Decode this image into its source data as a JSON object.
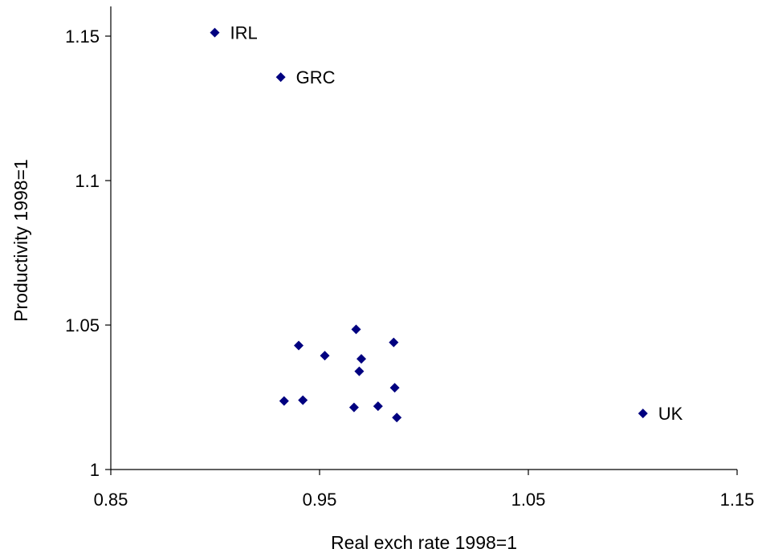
{
  "chart_data": {
    "type": "scatter",
    "title": "",
    "xlabel": "Real exch rate 1998=1",
    "ylabel": "Productivity 1998=1",
    "xlim": [
      0.85,
      1.15
    ],
    "ylim": [
      1,
      1.16
    ],
    "x_ticks": [
      {
        "value": 0.85,
        "label": "0.85"
      },
      {
        "value": 0.95,
        "label": "0.95"
      },
      {
        "value": 1.05,
        "label": "1.05"
      },
      {
        "value": 1.15,
        "label": "1.15"
      }
    ],
    "y_ticks": [
      {
        "value": 1,
        "label": "1"
      },
      {
        "value": 1.05,
        "label": "1.05"
      },
      {
        "value": 1.1,
        "label": "1.1"
      },
      {
        "value": 1.15,
        "label": "1.15"
      }
    ],
    "marker": "diamond",
    "marker_color": "#000080",
    "grid": false,
    "legend": "none",
    "points": [
      {
        "x": 0.8998,
        "y": 1.1512,
        "label": "IRL"
      },
      {
        "x": 0.9314,
        "y": 1.1358,
        "label": "GRC"
      },
      {
        "x": 1.1049,
        "y": 1.0194,
        "label": "UK"
      },
      {
        "x": 0.94,
        "y": 1.0429,
        "label": ""
      },
      {
        "x": 0.9525,
        "y": 1.0394,
        "label": ""
      },
      {
        "x": 0.9675,
        "y": 1.0485,
        "label": ""
      },
      {
        "x": 0.9855,
        "y": 1.044,
        "label": ""
      },
      {
        "x": 0.97,
        "y": 1.0383,
        "label": ""
      },
      {
        "x": 0.969,
        "y": 1.034,
        "label": ""
      },
      {
        "x": 0.986,
        "y": 1.0283,
        "label": ""
      },
      {
        "x": 0.933,
        "y": 1.0237,
        "label": ""
      },
      {
        "x": 0.942,
        "y": 1.024,
        "label": ""
      },
      {
        "x": 0.9665,
        "y": 1.0215,
        "label": ""
      },
      {
        "x": 0.978,
        "y": 1.0219,
        "label": ""
      },
      {
        "x": 0.987,
        "y": 1.018,
        "label": ""
      }
    ]
  }
}
